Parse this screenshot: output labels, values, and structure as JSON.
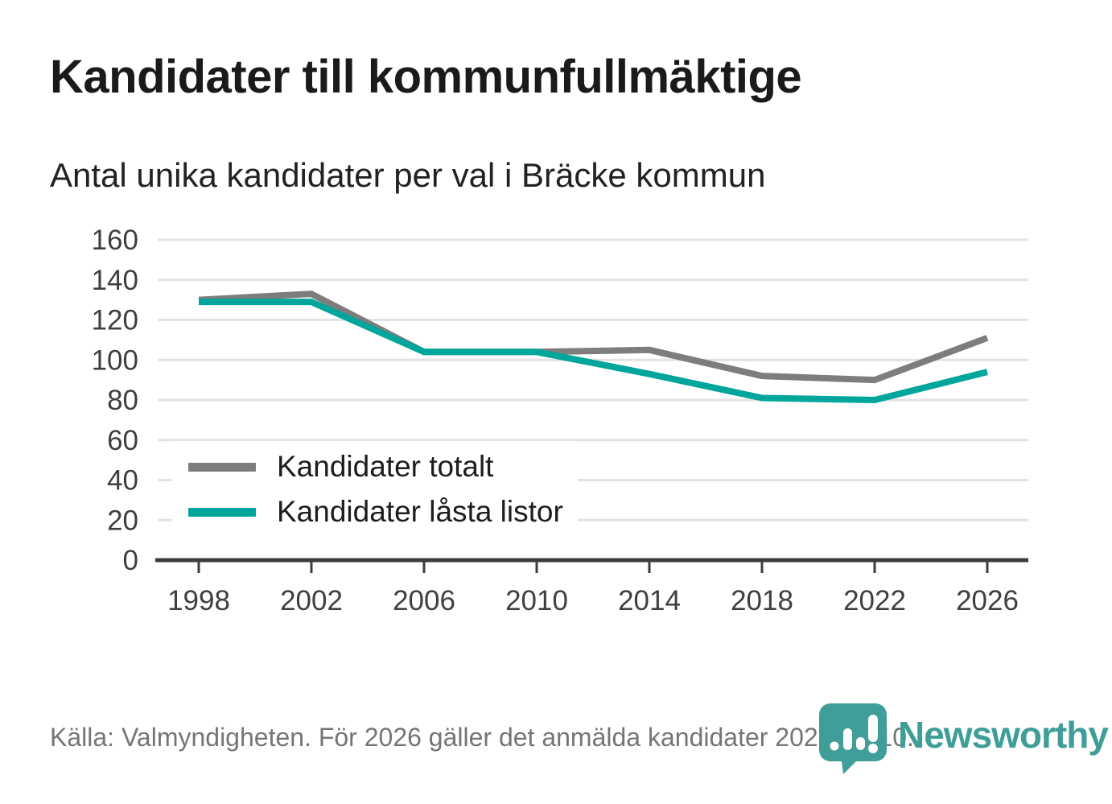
{
  "header": {
    "title": "Kandidater till kommunfullmäktige",
    "subtitle": "Antal unika kandidater per val i Bräcke kommun"
  },
  "chart_data": {
    "type": "line",
    "x": [
      1998,
      2002,
      2006,
      2010,
      2014,
      2018,
      2022,
      2026
    ],
    "series": [
      {
        "name": "Kandidater totalt",
        "color": "#7d7d7d",
        "values": [
          130,
          133,
          104,
          104,
          105,
          92,
          90,
          111
        ]
      },
      {
        "name": "Kandidater låsta listor",
        "color": "#00a69b",
        "values": [
          129,
          129,
          104,
          104,
          93,
          81,
          80,
          94
        ]
      }
    ],
    "title": "Kandidater till kommunfullmäktige",
    "xlabel": "",
    "ylabel": "",
    "ylim": [
      0,
      160
    ],
    "yticks": [
      0,
      20,
      40,
      60,
      80,
      100,
      120,
      140,
      160
    ],
    "xticks": [
      "1998",
      "2002",
      "2006",
      "2010",
      "2014",
      "2018",
      "2022",
      "2026"
    ],
    "grid": true,
    "legend_position": "inside-bottom-left"
  },
  "footer": {
    "source": "Källa: Valmyndigheten. För 2026 gäller det anmälda kandidater 2026-04-10."
  },
  "branding": {
    "wordmark": "Newsworthy",
    "color": "#3f9e97",
    "icon": "newsworthy-pin-barchart-icon"
  }
}
